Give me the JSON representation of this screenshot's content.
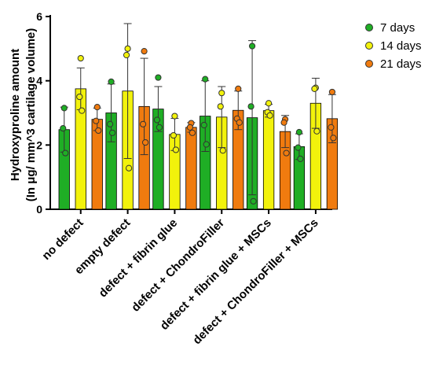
{
  "chart_data": {
    "type": "bar",
    "title": "",
    "xlabel": "",
    "ylabel_lines": [
      "Hydroxyproline amount",
      "(In μg/ mm^3 cartilage volume)"
    ],
    "ylim": [
      0,
      6
    ],
    "yticks": [
      0,
      2,
      4,
      6
    ],
    "grid": false,
    "legend_position": "top-right",
    "categories": [
      "no defect",
      "empty defect",
      "defect + fibrin glue",
      "defect + ChondroFiller",
      "defect + fibrin glue + MSCs",
      "defect + ChondroFiller + MSCs"
    ],
    "series": [
      {
        "name": "7 days",
        "color": "#1fae25",
        "values": [
          2.48,
          3.0,
          3.12,
          2.9,
          2.85,
          1.95
        ],
        "error": [
          0.7,
          0.9,
          0.7,
          1.1,
          2.4,
          0.4
        ],
        "points": [
          [
            3.15,
            2.52,
            1.75
          ],
          [
            3.97,
            2.65,
            2.38
          ],
          [
            4.1,
            2.78,
            2.55
          ],
          [
            4.05,
            2.62,
            2.02
          ],
          [
            5.08,
            3.2,
            0.25
          ],
          [
            2.4,
            1.92,
            1.57
          ]
        ]
      },
      {
        "name": "14 days",
        "color": "#f2f20c",
        "values": [
          3.75,
          3.68,
          2.33,
          2.87,
          3.07,
          3.3
        ],
        "error": [
          0.65,
          2.1,
          0.5,
          0.95,
          0.2,
          0.78
        ],
        "points": [
          [
            4.7,
            3.5,
            3.07
          ],
          [
            5.0,
            4.8,
            1.28
          ],
          [
            2.9,
            2.3,
            1.85
          ],
          [
            3.62,
            3.2,
            1.83
          ],
          [
            3.3,
            3.02,
            2.92
          ],
          [
            3.78,
            3.75,
            2.43
          ]
        ]
      },
      {
        "name": "21 days",
        "color": "#f07b0f",
        "values": [
          2.8,
          3.2,
          2.55,
          3.08,
          2.42,
          2.82
        ],
        "error": [
          0.35,
          1.5,
          0.15,
          0.6,
          0.5,
          0.75
        ],
        "points": [
          [
            3.18,
            2.75,
            2.45
          ],
          [
            4.92,
            2.65,
            2.08
          ],
          [
            2.68,
            2.55,
            2.38
          ],
          [
            3.75,
            2.82,
            2.7
          ],
          [
            2.8,
            2.7,
            1.75
          ],
          [
            3.65,
            2.55,
            2.22
          ]
        ]
      }
    ]
  }
}
